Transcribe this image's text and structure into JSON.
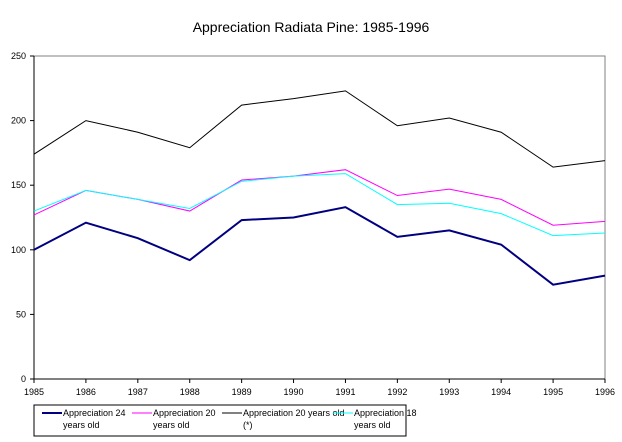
{
  "chart_data": {
    "type": "line",
    "title": "Appreciation Radiata Pine: 1985-1996",
    "xlabel": "",
    "ylabel": "",
    "x": [
      "1985",
      "1986",
      "1987",
      "1988",
      "1989",
      "1990",
      "1991",
      "1992",
      "1993",
      "1994",
      "1995",
      "1996"
    ],
    "ylim": [
      0,
      250
    ],
    "yticks": [
      0,
      50,
      100,
      150,
      200,
      250
    ],
    "grid": false,
    "legend_position": "bottom-left",
    "series": [
      {
        "name": "Appreciation 24 years old",
        "color": "#000080",
        "values": [
          100,
          121,
          109,
          92,
          123,
          125,
          133,
          110,
          115,
          104,
          73,
          80
        ]
      },
      {
        "name": "Appreciation 20 years old",
        "color": "#ff00ff",
        "values": [
          127,
          146,
          139,
          130,
          154,
          157,
          162,
          142,
          147,
          139,
          119,
          122
        ]
      },
      {
        "name": "Appreciation 20 years old (*)",
        "color": "#000000",
        "values": [
          174,
          200,
          191,
          179,
          212,
          217,
          223,
          196,
          202,
          191,
          164,
          169
        ]
      },
      {
        "name": "Appreciation 18 years old",
        "color": "#00ffff",
        "values": [
          130,
          146,
          139,
          132,
          153,
          157,
          159,
          135,
          136,
          128,
          111,
          113
        ]
      }
    ]
  }
}
